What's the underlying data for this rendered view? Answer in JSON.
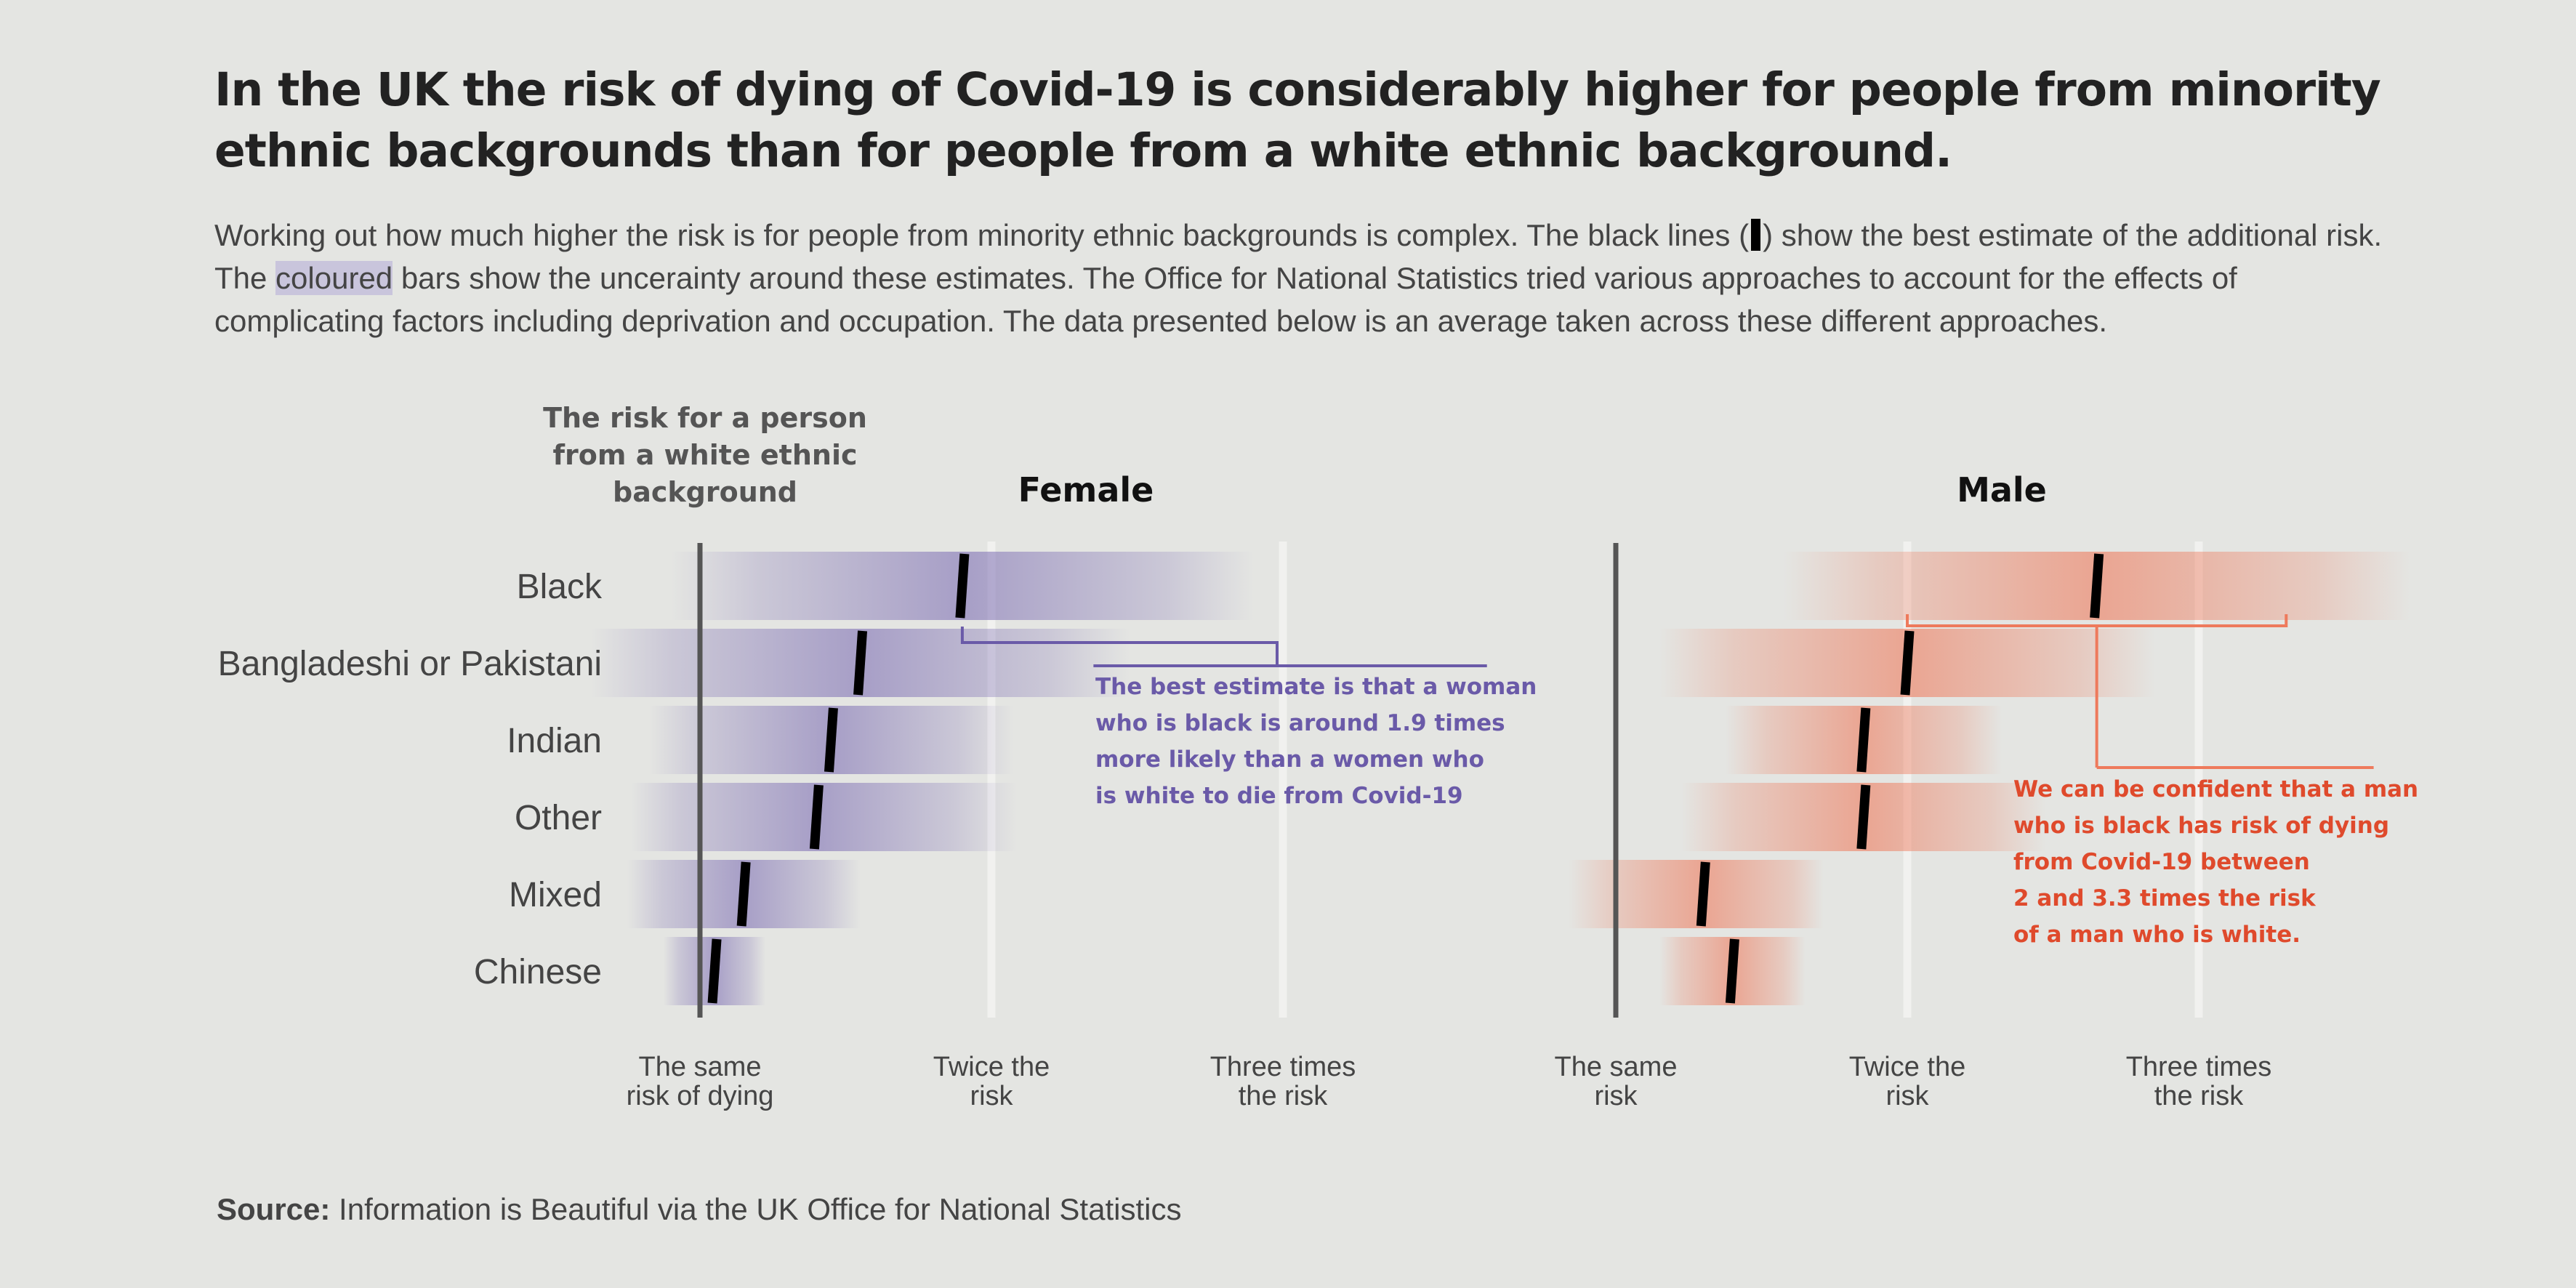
{
  "title": "In the UK the risk of dying of Covid-19 is considerably higher for people from minority ethnic backgrounds than for people from a white ethnic background.",
  "subtitle": {
    "part1": "Working out how much higher the risk is for people from minority ethnic backgrounds is complex. The black lines (",
    "part2": ") show the best estimate of the additional risk. The ",
    "highlight": "coloured",
    "part3": " bars show the unceraintу around these estimates. The Office for National Statistics tried various approaches to account for the effects of complicating factors including deprivation and occupation. The data presented below is an average taken across these different approaches."
  },
  "baseline_label": [
    "The risk for a person",
    "from a white ethnic",
    "background"
  ],
  "source": {
    "label": "Source:",
    "text": "Information is Beautiful via the UK Office for National Statistics"
  },
  "chart_data": [
    {
      "type": "bar",
      "title": "Female",
      "categories": [
        "Black",
        "Bangladeshi or Pakistani",
        "Indian",
        "Other",
        "Mixed",
        "Chinese"
      ],
      "estimate": [
        1.9,
        1.55,
        1.45,
        1.4,
        1.15,
        1.05
      ],
      "lower": [
        1.3,
        1.0,
        1.1,
        1.05,
        0.95,
        1.0
      ],
      "upper": [
        2.5,
        2.1,
        1.8,
        1.8,
        1.35,
        1.1
      ],
      "x_ticks": [
        {
          "value": 1,
          "label": [
            "The same",
            "risk of dying"
          ]
        },
        {
          "value": 2,
          "label": [
            "Twice the",
            "risk"
          ]
        },
        {
          "value": 3,
          "label": [
            "Three times",
            "the risk"
          ]
        }
      ],
      "xlim": [
        1,
        3.7
      ],
      "color": "#7e6fb4",
      "annotation": [
        "The best estimate is that a woman",
        "who is black is around 1.9  times",
        "more likely than a women who",
        "is white to die from Covid-19"
      ],
      "annotation_color": "#6a5aa8"
    },
    {
      "type": "bar",
      "title": "Male",
      "categories": [
        "Black",
        "Bangladeshi or Pakistani",
        "Indian",
        "Other",
        "Mixed",
        "Chinese"
      ],
      "estimate": [
        2.65,
        2.0,
        1.85,
        1.85,
        1.3,
        1.4
      ],
      "lower": [
        2.0,
        1.5,
        1.6,
        1.5,
        1.05,
        1.3
      ],
      "upper": [
        3.3,
        2.5,
        2.1,
        2.2,
        1.5,
        1.5
      ],
      "x_ticks": [
        {
          "value": 1,
          "label": [
            "The same",
            "risk"
          ]
        },
        {
          "value": 2,
          "label": [
            "Twice the",
            "risk"
          ]
        },
        {
          "value": 3,
          "label": [
            "Three times",
            "the risk"
          ]
        }
      ],
      "xlim": [
        1,
        3.7
      ],
      "color": "#ee7a5c",
      "annotation": [
        "We can be confident that a man",
        "who is black has risk of dying",
        "from Covid-19 between",
        "2 and 3.3 times the risk",
        "of a man who is white."
      ],
      "annotation_color": "#df4a2c"
    }
  ]
}
